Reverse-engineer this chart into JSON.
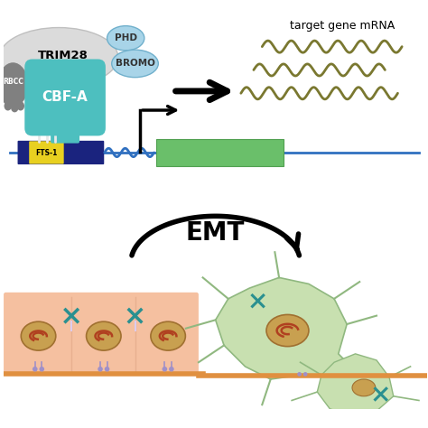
{
  "bg_color": "#ffffff",
  "title_text": "target gene mRNA",
  "emt_text": "EMT",
  "cbfa_text": "CBF-A",
  "trim28_text": "TRIM28",
  "rbcc_text": "RBCC",
  "phd_text": "PHD",
  "bromo_text": "BROMO",
  "fts1_text": "FTS-1",
  "colors": {
    "cbfa": "#4dbfbf",
    "trim28_halo": "#d8d8d8",
    "rbcc": "#808080",
    "phd": "#a8d4e8",
    "bromo": "#a8d4e8",
    "dna_line": "#3070c0",
    "promoter_box": "#1a237e",
    "fts1": "#e8d020",
    "gene_box": "#6abf6a",
    "arrow_black": "#111111",
    "mrna_wave": "#7a7830",
    "emt_cell_left": "#f5c0a0",
    "emt_cell_right": "#c8e0b0",
    "emt_line": "#e08040",
    "nucleus_color": "#c8a050",
    "chromatin_color": "#b04020",
    "junction_teal": "#2a9090",
    "integrin_purple": "#a090c8"
  }
}
